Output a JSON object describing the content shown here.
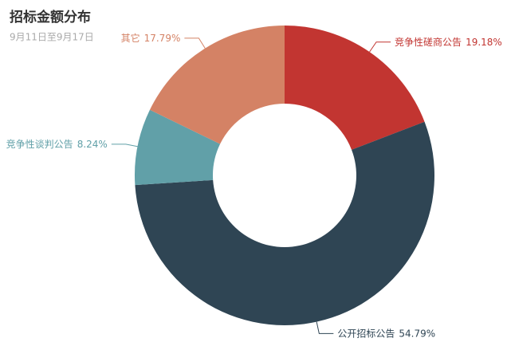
{
  "chart_data": {
    "type": "pie",
    "title": "招标金额分布",
    "subtitle": "9月11日至9月17日",
    "categories": [
      "竞争性磋商公告",
      "公开招标公告",
      "竞争性谈判公告",
      "其它"
    ],
    "values": [
      19.18,
      54.79,
      8.24,
      17.79
    ],
    "value_labels": [
      "19.18%",
      "54.79%",
      "8.24%",
      "17.79%"
    ],
    "colors": [
      "#c23531",
      "#2f4554",
      "#61a0a8",
      "#d48265"
    ]
  }
}
